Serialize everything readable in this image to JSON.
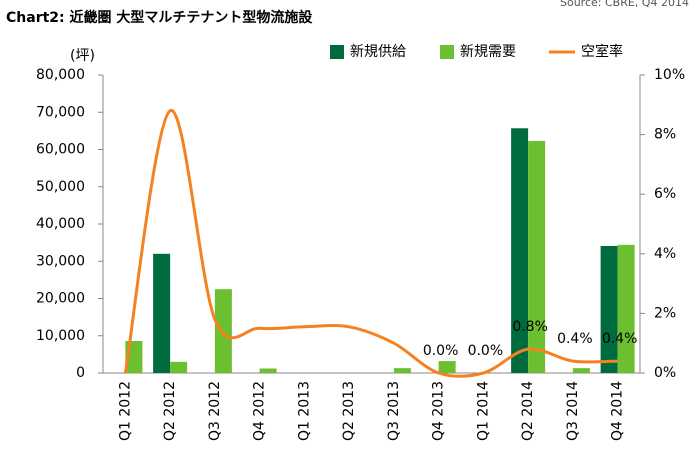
{
  "chart_data": {
    "type": "bar-line",
    "title": "Chart2: 近畿圏 大型マルチテナント型物流施設",
    "source": "Source: CBRE, Q4 2014",
    "y_label": "(坪)",
    "categories": [
      "Q1 2012",
      "Q2 2012",
      "Q3 2012",
      "Q4 2012",
      "Q1 2013",
      "Q2 2013",
      "Q3 2013",
      "Q4 2013",
      "Q1 2014",
      "Q2 2014",
      "Q3 2014",
      "Q4 2014"
    ],
    "series": [
      {
        "name": "新規供給",
        "type": "bar",
        "color": "#006b3f",
        "values": [
          0,
          32000,
          0,
          0,
          0,
          0,
          0,
          0,
          0,
          65700,
          0,
          34100
        ]
      },
      {
        "name": "新規需要",
        "type": "bar",
        "color": "#6cbf2e",
        "values": [
          8600,
          3000,
          22500,
          1200,
          0,
          0,
          1300,
          3200,
          0,
          62300,
          1300,
          34400
        ]
      },
      {
        "name": "空室率",
        "type": "line",
        "axis": "y2",
        "color": "#f58220",
        "values": [
          0,
          8.8,
          1.8,
          1.5,
          1.55,
          1.55,
          1.0,
          0.0,
          0.0,
          0.8,
          0.4,
          0.4
        ],
        "value_labels": [
          null,
          null,
          null,
          null,
          null,
          null,
          null,
          "0.0%",
          "0.0%",
          "0.8%",
          "0.4%",
          "0.4%"
        ]
      }
    ],
    "ylim": [
      0,
      80000
    ],
    "yticks": [
      0,
      {
        "value": 10000,
        "label": "10,000"
      },
      {
        "value": 20000,
        "label": "20,000"
      },
      {
        "value": 30000,
        "label": "30,000"
      },
      {
        "value": 40000,
        "label": "40,000"
      },
      {
        "value": 50000,
        "label": "50,000"
      },
      {
        "value": 60000,
        "label": "60,000"
      },
      {
        "value": 70000,
        "label": "70,000"
      },
      {
        "value": 80000,
        "label": "80,000"
      }
    ],
    "y2lim": [
      0,
      10
    ],
    "y2ticks": [
      {
        "value": 0,
        "label": "0%"
      },
      {
        "value": 2,
        "label": "2%"
      },
      {
        "value": 4,
        "label": "4%"
      },
      {
        "value": 6,
        "label": "6%"
      },
      {
        "value": 8,
        "label": "8%"
      },
      {
        "value": 10,
        "label": "10%"
      }
    ]
  }
}
